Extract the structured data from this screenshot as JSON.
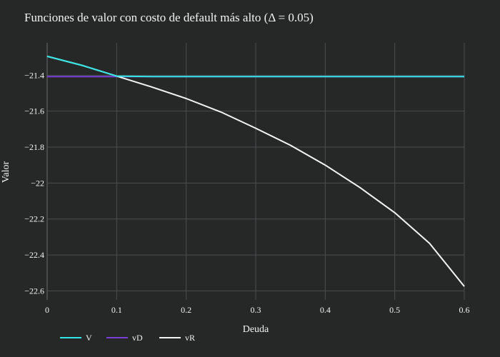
{
  "chart_data": {
    "type": "line",
    "title": "Funciones de valor con costo de default más alto (Δ = 0.05)",
    "xlabel": "Deuda",
    "ylabel": "Valor",
    "xlim": [
      0,
      0.6
    ],
    "ylim": [
      -22.65,
      -21.22
    ],
    "xticks": [
      0,
      0.1,
      0.2,
      0.3,
      0.4,
      0.5,
      0.6
    ],
    "xtick_labels": [
      "0",
      "0.1",
      "0.2",
      "0.3",
      "0.4",
      "0.5",
      "0.6"
    ],
    "yticks": [
      -21.4,
      -21.6,
      -21.8,
      -22,
      -22.2,
      -22.4,
      -22.6
    ],
    "ytick_labels": [
      "−21.4",
      "−21.6",
      "−21.8",
      "−22",
      "−22.2",
      "−22.4",
      "−22.6"
    ],
    "grid": true,
    "legend_position": "bottom-left",
    "x": [
      0,
      0.05,
      0.1,
      0.15,
      0.2,
      0.25,
      0.3,
      0.35,
      0.4,
      0.45,
      0.5,
      0.55,
      0.6
    ],
    "series": [
      {
        "name": "V",
        "color": "#33e6e6",
        "values": [
          -21.295,
          -21.345,
          -21.405,
          -21.408,
          -21.408,
          -21.408,
          -21.408,
          -21.408,
          -21.408,
          -21.408,
          -21.408,
          -21.408,
          -21.408
        ]
      },
      {
        "name": "vD",
        "color": "#7a3fd6",
        "values": [
          -21.408,
          -21.408,
          -21.408,
          -21.408,
          -21.408,
          -21.408,
          -21.408,
          -21.408,
          -21.408,
          -21.408,
          -21.408,
          -21.408,
          -21.408
        ]
      },
      {
        "name": "vR",
        "color": "#f4f4f4",
        "values": [
          -21.295,
          -21.345,
          -21.405,
          -21.465,
          -21.53,
          -21.605,
          -21.695,
          -21.79,
          -21.9,
          -22.025,
          -22.165,
          -22.335,
          -22.575
        ]
      }
    ]
  }
}
